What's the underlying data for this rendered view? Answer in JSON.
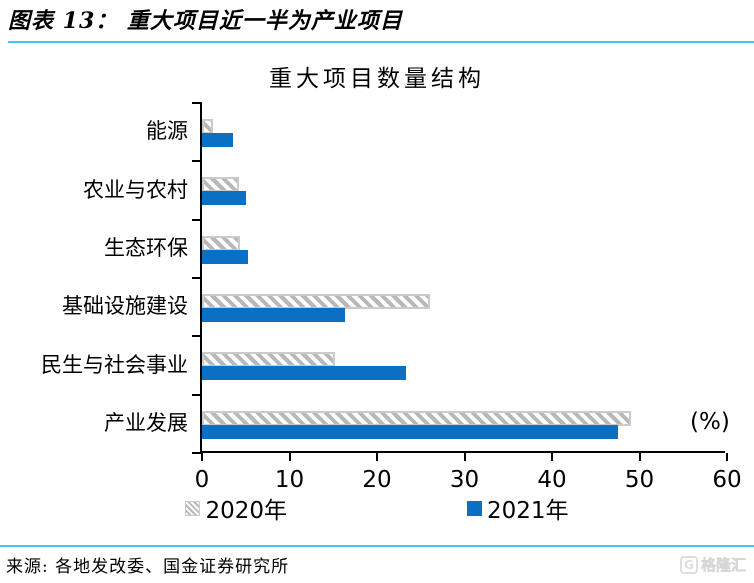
{
  "header": {
    "title": "图表 13：  重大项目近一半为产业项目"
  },
  "chart_data": {
    "type": "bar",
    "orientation": "horizontal",
    "title": "重大项目数量结构",
    "categories": [
      "能源",
      "农业与农村",
      "生态环保",
      "基础设施建设",
      "民生与社会事业",
      "产业发展"
    ],
    "series": [
      {
        "name": "2020年",
        "style": "hatched",
        "values": [
          1.3,
          4.2,
          4.3,
          26.0,
          15.2,
          49.0
        ]
      },
      {
        "name": "2021年",
        "style": "solid",
        "values": [
          3.5,
          5.0,
          5.2,
          16.3,
          23.3,
          47.5
        ]
      }
    ],
    "xlim": [
      0,
      60
    ],
    "xticks": [
      0,
      10,
      20,
      30,
      40,
      50,
      60
    ],
    "unit_label": "(%)",
    "legend_position": "bottom-center",
    "grid": false,
    "colors": {
      "bar_2021": "#0c70c2",
      "hatch_stripe": "#b8b8b8",
      "hatch_border": "#cbcbcb",
      "axis": "#000000",
      "accent_line": "#49c3f1"
    }
  },
  "footer": {
    "source": "来源:  各地发改委、国金证券研究所",
    "logo_text": "格隆汇",
    "logo_letter": "G"
  }
}
